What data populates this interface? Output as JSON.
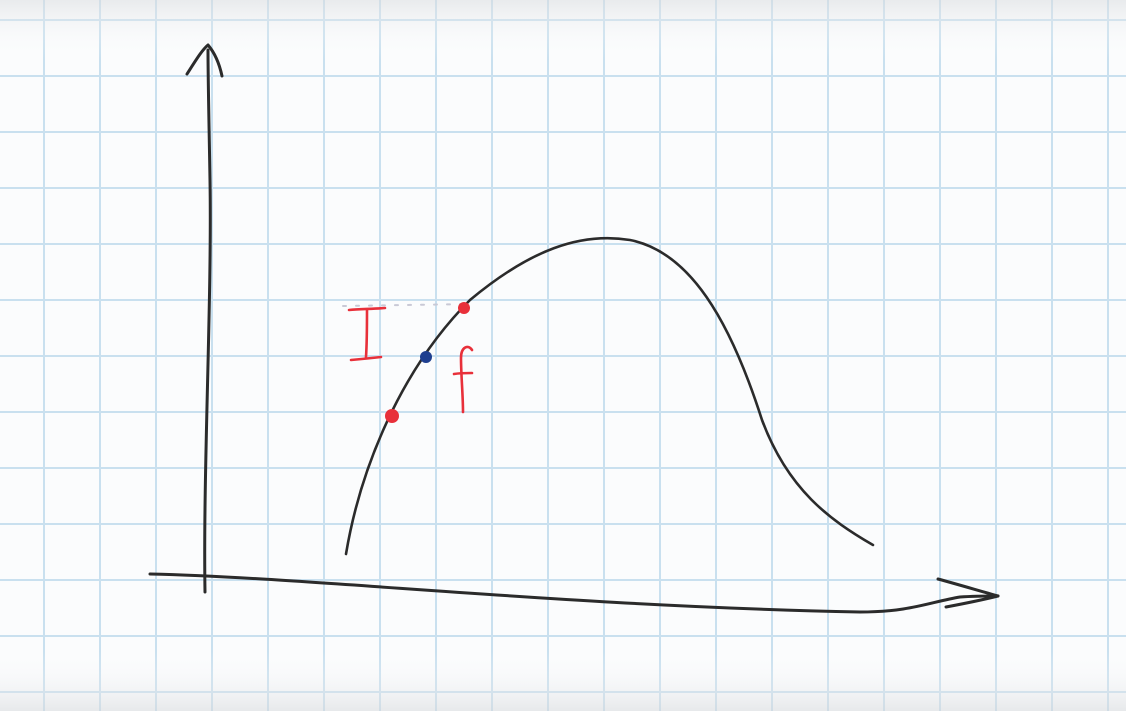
{
  "sketch": {
    "labels": {
      "initial": "I",
      "final": "f"
    },
    "colors": {
      "paper": "#fbfcfd",
      "grid": "#c9e0ef",
      "ink": "#2b2b2b",
      "red_marker": "#e8303a",
      "blue_marker": "#1f3f8f",
      "dotted_line": "#c9c9d6"
    }
  }
}
